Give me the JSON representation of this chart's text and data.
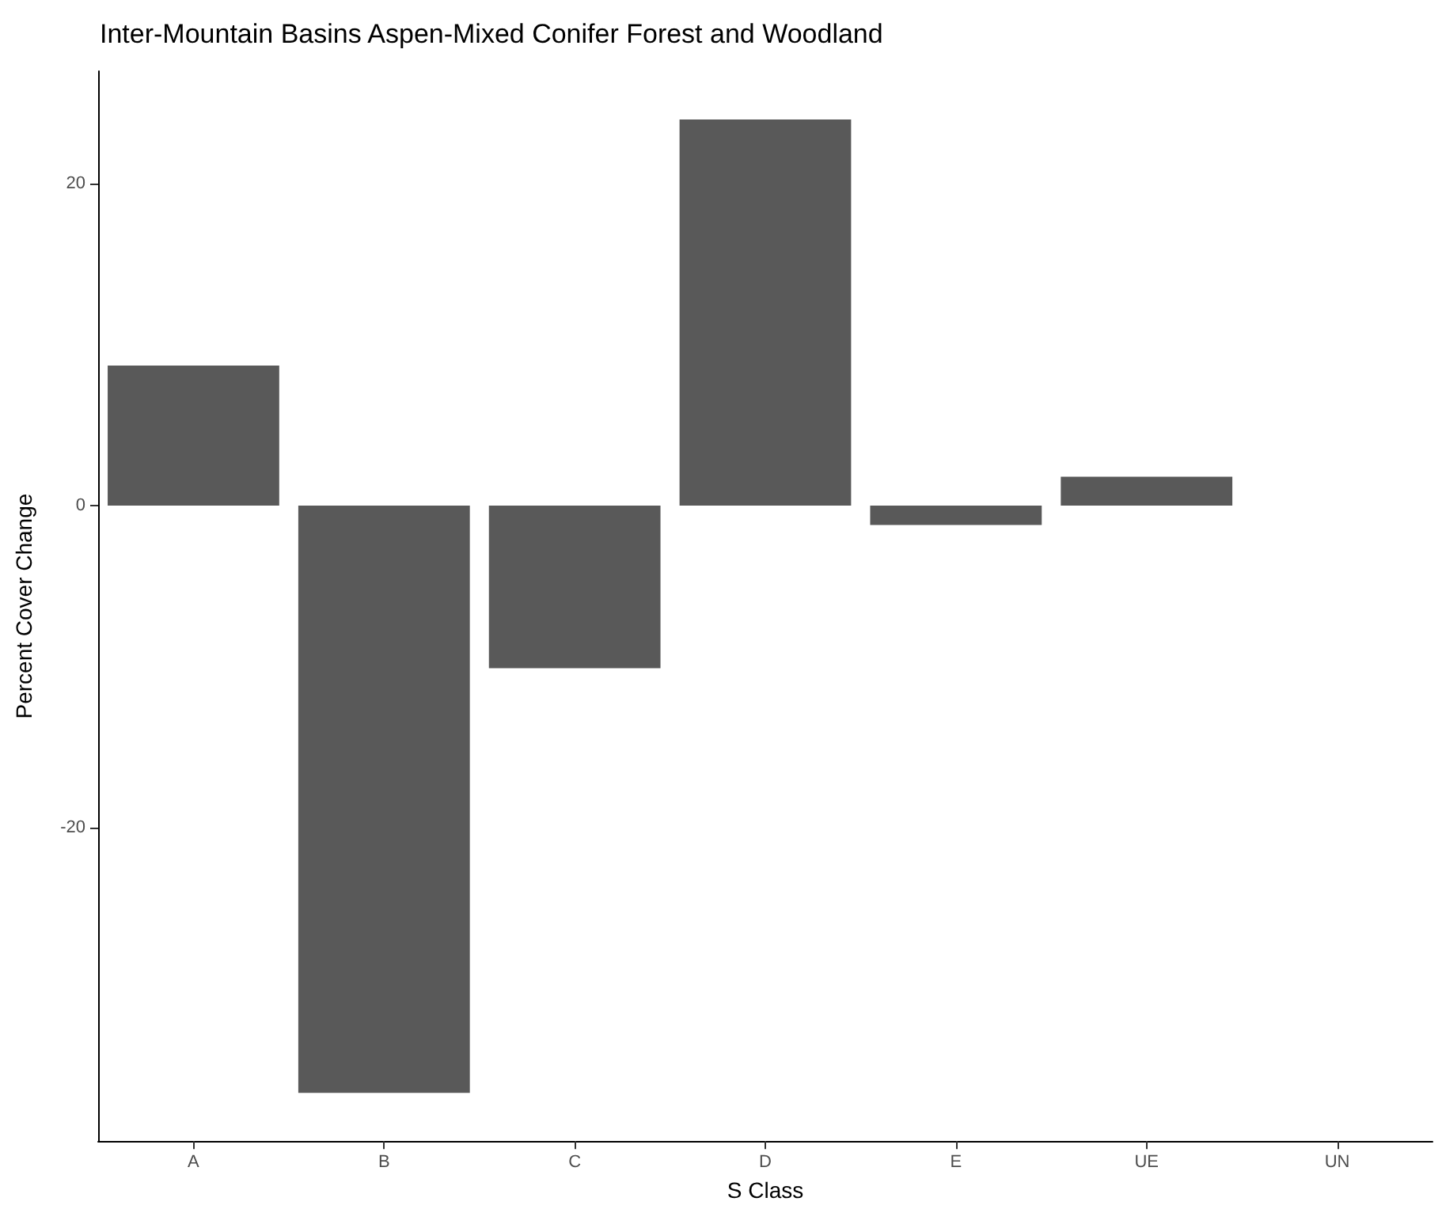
{
  "chart_data": {
    "type": "bar",
    "title": "Inter-Mountain Basins Aspen-Mixed Conifer Forest and Woodland",
    "xlabel": "S Class",
    "ylabel": "Percent Cover Change",
    "categories": [
      "A",
      "B",
      "C",
      "D",
      "E",
      "UE",
      "UN"
    ],
    "values": [
      8.7,
      -36.5,
      -10.1,
      24.0,
      -1.2,
      1.8,
      0
    ],
    "color": "#595959",
    "ylim": [
      -39.5,
      27
    ],
    "yticks": [
      -20,
      0,
      20
    ],
    "grid": false
  }
}
